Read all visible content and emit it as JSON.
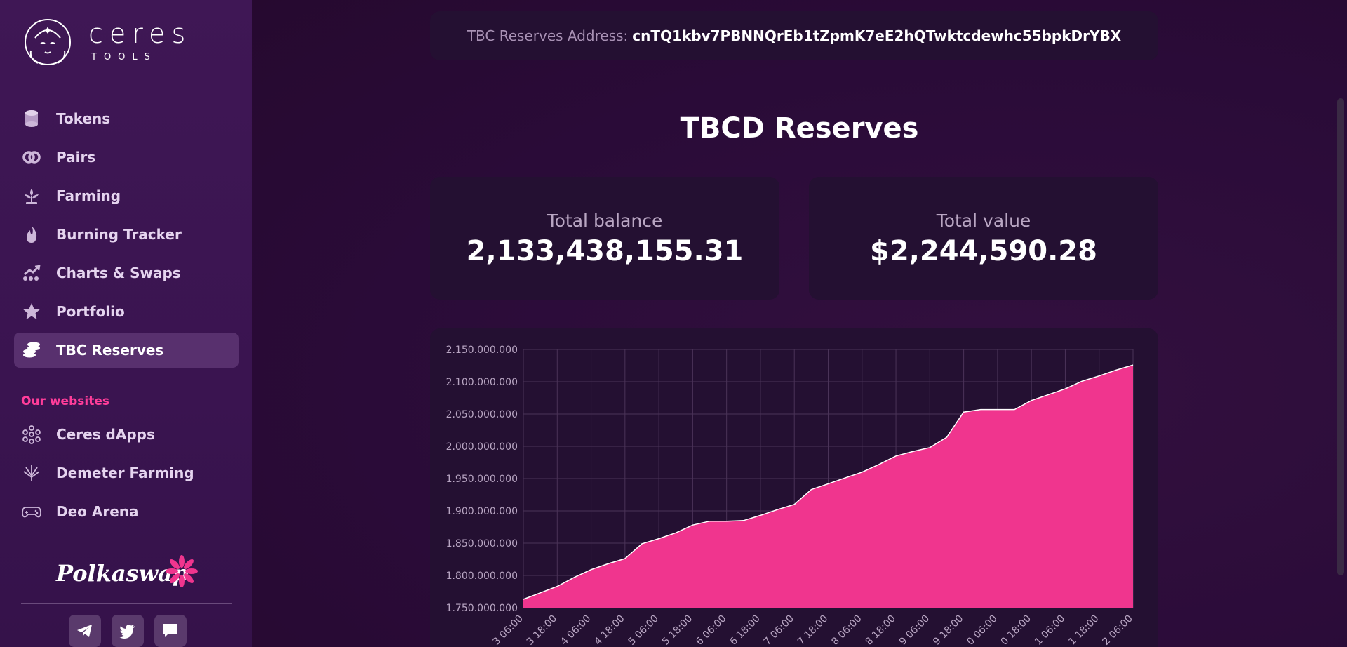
{
  "sidebar": {
    "logo": {
      "word": "ceres",
      "sub": "TOOLS"
    },
    "items": [
      {
        "label": "Tokens",
        "icon": "coins-stack-icon"
      },
      {
        "label": "Pairs",
        "icon": "rings-icon"
      },
      {
        "label": "Farming",
        "icon": "plant-icon"
      },
      {
        "label": "Burning Tracker",
        "icon": "flame-icon"
      },
      {
        "label": "Charts & Swaps",
        "icon": "chart-trend-icon"
      },
      {
        "label": "Portfolio",
        "icon": "star-icon"
      },
      {
        "label": "TBC Reserves",
        "icon": "coins-icon",
        "active": true
      }
    ],
    "section_title": "Our websites",
    "websites": [
      {
        "label": "Ceres dApps",
        "icon": "network-icon"
      },
      {
        "label": "Demeter Farming",
        "icon": "wheat-icon"
      },
      {
        "label": "Deo Arena",
        "icon": "gamepad-icon"
      }
    ],
    "polkaswap": "Polkaswap",
    "socials": [
      "telegram-icon",
      "twitter-icon",
      "chat-icon"
    ]
  },
  "main": {
    "address_label": "TBC Reserves Address:",
    "address_value": "cnTQ1kbv7PBNNQrEb1tZpmK7eE2hQTwktcdewhc55bpkDrYBX",
    "title": "TBCD Reserves",
    "total_balance_label": "Total balance",
    "total_balance_value": "2,133,438,155.31",
    "total_value_label": "Total value",
    "total_value_value": "$2,244,590.28"
  },
  "chart_data": {
    "type": "area",
    "title": "",
    "xlabel": "",
    "ylabel": "",
    "ylim": [
      1750000000,
      2150000000
    ],
    "y_ticks": [
      "2.150.000.000",
      "2.100.000.000",
      "2.050.000.000",
      "2.000.000.000",
      "1.950.000.000",
      "1.900.000.000",
      "1.850.000.000",
      "1.800.000.000",
      "1.750.000.000"
    ],
    "x_ticks": [
      "3 06:00",
      "3 18:00",
      "4 06:00",
      "4 18:00",
      "5 06:00",
      "5 18:00",
      "6 06:00",
      "6 18:00",
      "7 06:00",
      "7 18:00",
      "8 06:00",
      "8 18:00",
      "9 06:00",
      "9 18:00",
      "0 06:00",
      "0 18:00",
      "1 06:00",
      "1 18:00",
      "2 06:00"
    ],
    "grid": true,
    "fill_color": "#f0358e",
    "values": [
      1763000000,
      1773000000,
      1783000000,
      1797000000,
      1809000000,
      1818000000,
      1826000000,
      1849000000,
      1857000000,
      1866000000,
      1878000000,
      1884000000,
      1884000000,
      1885000000,
      1893000000,
      1902000000,
      1910000000,
      1933000000,
      1942000000,
      1951000000,
      1960000000,
      1972000000,
      1985000000,
      1992000000,
      1998000000,
      2014000000,
      2053000000,
      2057000000,
      2057000000,
      2057000000,
      2071000000,
      2080000000,
      2089000000,
      2101000000,
      2109000000,
      2118000000,
      2126000000
    ]
  }
}
